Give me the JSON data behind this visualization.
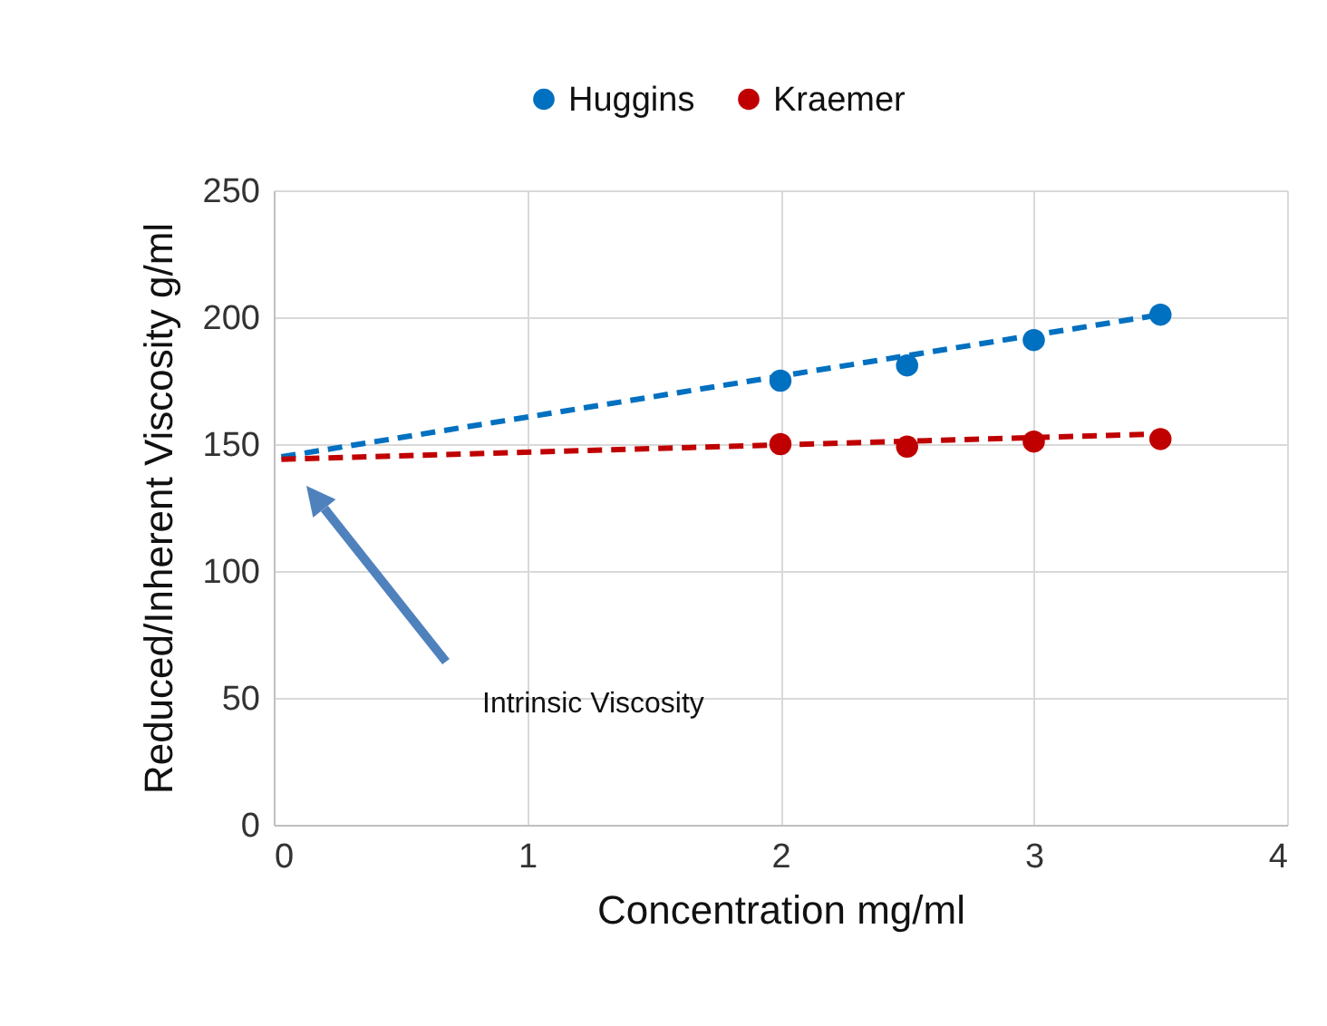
{
  "chart_data": {
    "type": "scatter",
    "xlabel": "Concentration mg/ml",
    "ylabel": "Reduced/Inherent  Viscosity g/ml",
    "xlim": [
      0,
      4
    ],
    "xticks": [
      0,
      1,
      2,
      3,
      4
    ],
    "ylim": [
      0,
      250
    ],
    "yticks": [
      0,
      50,
      100,
      150,
      200,
      250
    ],
    "grid": true,
    "legend": "top",
    "annotations": [
      "Intrinsic Viscosity"
    ],
    "series": [
      {
        "name": "Huggins",
        "color": "#0070c0",
        "marker": "circle",
        "x": [
          2,
          2.5,
          3,
          3.5
        ],
        "values": [
          175,
          181,
          191,
          201
        ]
      },
      {
        "name": "Kraemer",
        "color": "#c00000",
        "marker": "circle",
        "x": [
          2,
          2.5,
          3,
          3.5
        ],
        "values": [
          150,
          149,
          151,
          152
        ]
      },
      {
        "type": "line",
        "color": "#0070c0",
        "marker": "none",
        "line_style": "dashed",
        "x": [
          0.03,
          3.5
        ],
        "values": [
          145,
          201
        ]
      },
      {
        "type": "line",
        "color": "#c00000",
        "marker": "none",
        "line_style": "dashed",
        "x": [
          0.03,
          3.5
        ],
        "values": [
          144,
          154
        ]
      }
    ]
  }
}
